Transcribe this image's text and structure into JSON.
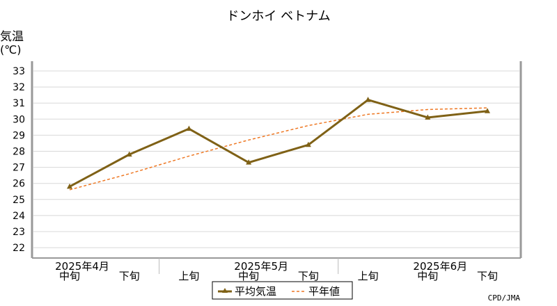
{
  "chart_data": {
    "type": "line",
    "title": "ドンホイ ベトナム",
    "ylabel_line1": "気温",
    "ylabel_line2": "(℃)",
    "ylim": [
      21.5,
      33.5
    ],
    "yticks": [
      22,
      23,
      24,
      25,
      26,
      27,
      28,
      29,
      30,
      31,
      32,
      33
    ],
    "categories": [
      "中旬",
      "下旬",
      "上旬",
      "中旬",
      "下旬",
      "上旬",
      "中旬",
      "下旬"
    ],
    "months": [
      {
        "label": "2025年4月",
        "center": 0
      },
      {
        "label": "2025年5月",
        "center": 3
      },
      {
        "label": "2025年6月",
        "center": 6
      }
    ],
    "month_separators": [
      1.5,
      4.5
    ],
    "grid": true,
    "series": [
      {
        "name": "平均気温",
        "values": [
          25.8,
          27.8,
          29.4,
          27.3,
          28.4,
          31.2,
          30.1,
          30.5
        ],
        "color": "#7f6116",
        "style": "solid",
        "marker": "triangle"
      },
      {
        "name": "平年値",
        "values": [
          25.6,
          26.6,
          27.7,
          28.7,
          29.6,
          30.3,
          30.6,
          30.7
        ],
        "color": "#ee7722",
        "style": "dashed"
      }
    ],
    "legend_position": "bottom",
    "credit": "CPD/JMA"
  }
}
